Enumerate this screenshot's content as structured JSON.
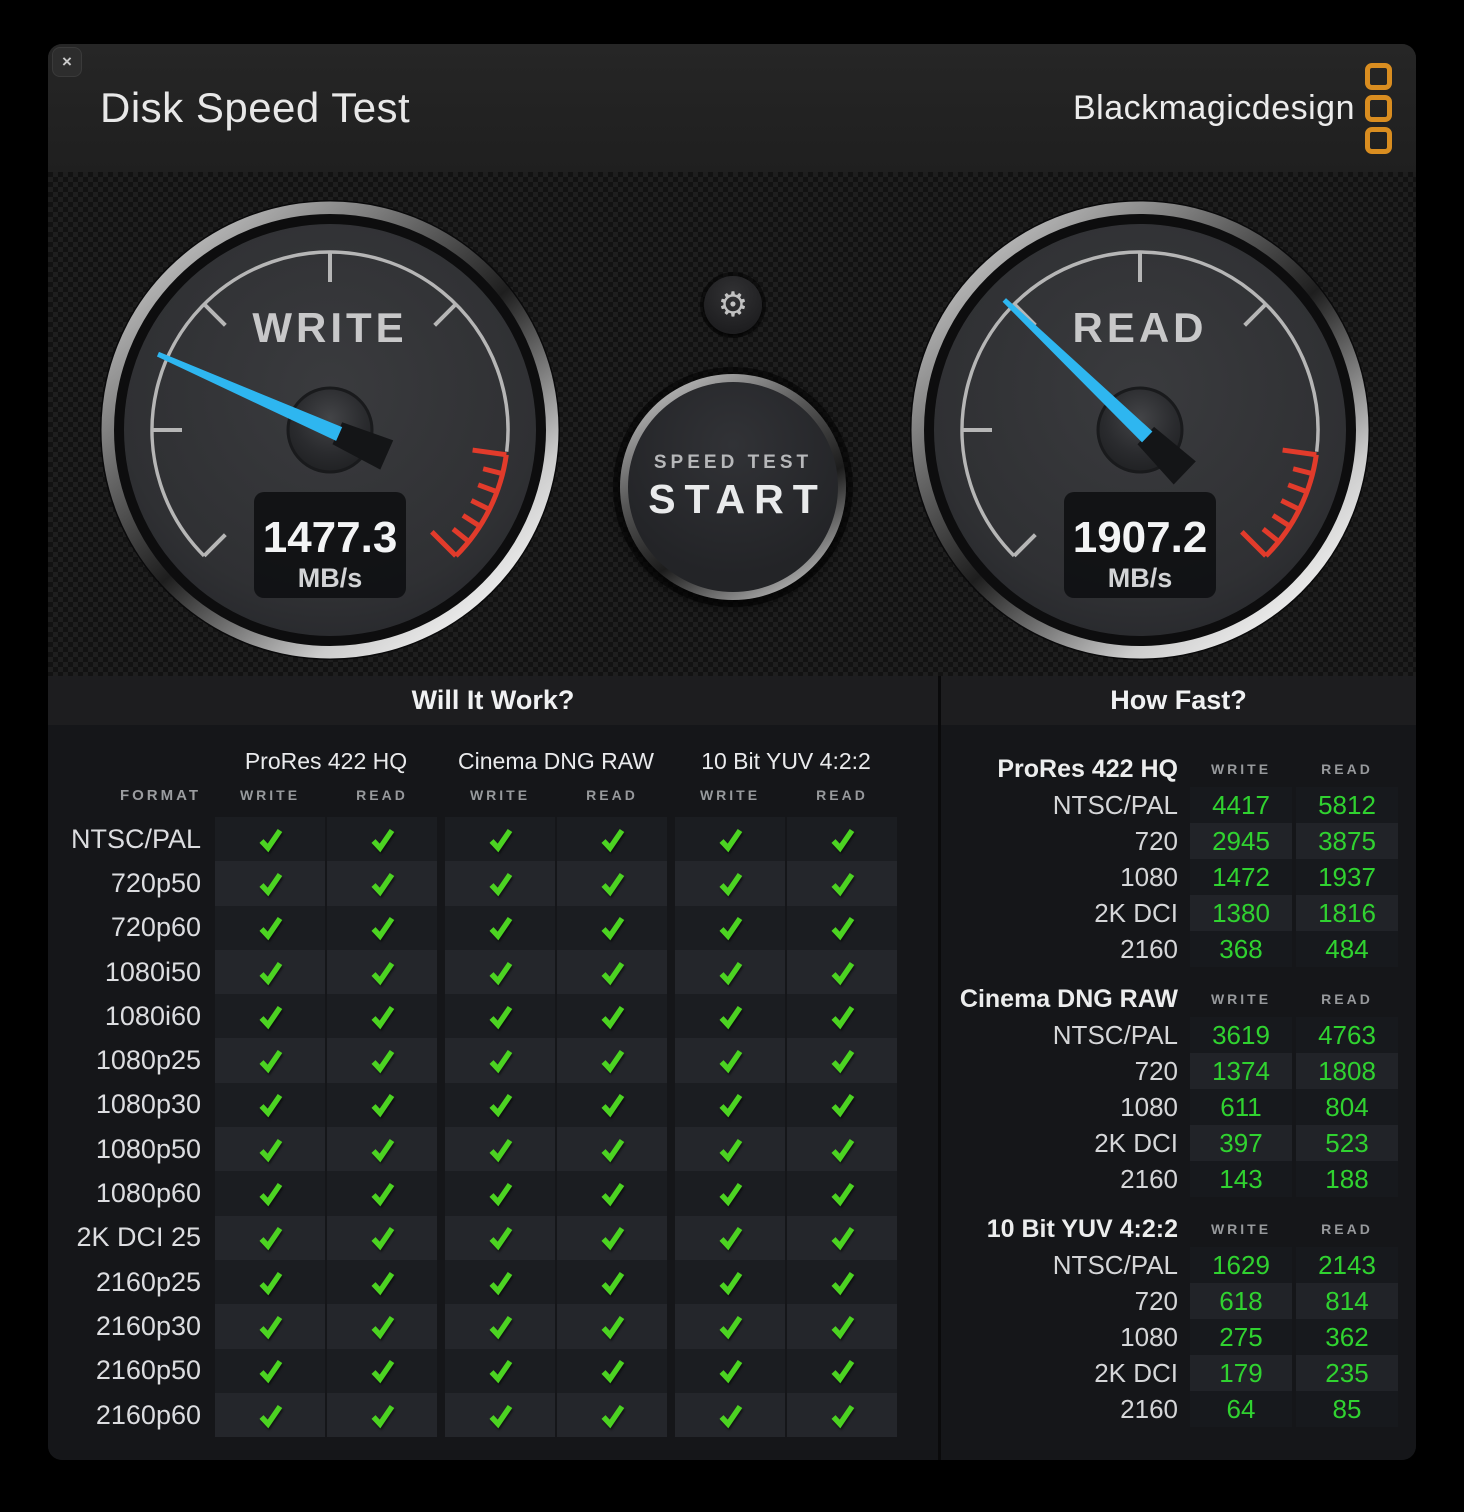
{
  "window": {
    "title": "Disk Speed Test",
    "close_glyph": "×"
  },
  "brand": {
    "logo_text": "Blackmagicdesign",
    "logo_color": "#d98d20",
    "square_count": 3
  },
  "controls": {
    "settings_icon": "gear",
    "settings_glyph": "⚙",
    "start_line1": "SPEED TEST",
    "start_line2": "START"
  },
  "gauges": {
    "start_angle": -135,
    "sweep": 270,
    "max": 5800,
    "needle_color": "#2eb6f0",
    "redzone_color": "#e23b2b",
    "write": {
      "label": "WRITE",
      "value": "1477.3",
      "value_num": 1477.3,
      "unit": "MB/s"
    },
    "read": {
      "label": "READ",
      "value": "1907.2",
      "value_num": 1907.2,
      "unit": "MB/s"
    }
  },
  "will_it_work": {
    "title": "Will It Work?",
    "format_header": "FORMAT",
    "groups": [
      "ProRes 422 HQ",
      "Cinema DNG RAW",
      "10 Bit YUV 4:2:2"
    ],
    "sub_headers": [
      "WRITE",
      "READ"
    ],
    "check_color": "#4cd322",
    "rows": [
      {
        "format": "NTSC/PAL",
        "checks": [
          true,
          true,
          true,
          true,
          true,
          true
        ]
      },
      {
        "format": "720p50",
        "checks": [
          true,
          true,
          true,
          true,
          true,
          true
        ]
      },
      {
        "format": "720p60",
        "checks": [
          true,
          true,
          true,
          true,
          true,
          true
        ]
      },
      {
        "format": "1080i50",
        "checks": [
          true,
          true,
          true,
          true,
          true,
          true
        ]
      },
      {
        "format": "1080i60",
        "checks": [
          true,
          true,
          true,
          true,
          true,
          true
        ]
      },
      {
        "format": "1080p25",
        "checks": [
          true,
          true,
          true,
          true,
          true,
          true
        ]
      },
      {
        "format": "1080p30",
        "checks": [
          true,
          true,
          true,
          true,
          true,
          true
        ]
      },
      {
        "format": "1080p50",
        "checks": [
          true,
          true,
          true,
          true,
          true,
          true
        ]
      },
      {
        "format": "1080p60",
        "checks": [
          true,
          true,
          true,
          true,
          true,
          true
        ]
      },
      {
        "format": "2K DCI 25",
        "checks": [
          true,
          true,
          true,
          true,
          true,
          true
        ]
      },
      {
        "format": "2160p25",
        "checks": [
          true,
          true,
          true,
          true,
          true,
          true
        ]
      },
      {
        "format": "2160p30",
        "checks": [
          true,
          true,
          true,
          true,
          true,
          true
        ]
      },
      {
        "format": "2160p50",
        "checks": [
          true,
          true,
          true,
          true,
          true,
          true
        ]
      },
      {
        "format": "2160p60",
        "checks": [
          true,
          true,
          true,
          true,
          true,
          true
        ]
      }
    ]
  },
  "how_fast": {
    "title": "How Fast?",
    "col_headers": [
      "WRITE",
      "READ"
    ],
    "value_color": "#30d230",
    "sections": [
      {
        "label": "ProRes 422 HQ",
        "rows": [
          {
            "format": "NTSC/PAL",
            "write": "4417",
            "read": "5812"
          },
          {
            "format": "720",
            "write": "2945",
            "read": "3875"
          },
          {
            "format": "1080",
            "write": "1472",
            "read": "1937"
          },
          {
            "format": "2K DCI",
            "write": "1380",
            "read": "1816"
          },
          {
            "format": "2160",
            "write": "368",
            "read": "484"
          }
        ]
      },
      {
        "label": "Cinema DNG RAW",
        "rows": [
          {
            "format": "NTSC/PAL",
            "write": "3619",
            "read": "4763"
          },
          {
            "format": "720",
            "write": "1374",
            "read": "1808"
          },
          {
            "format": "1080",
            "write": "611",
            "read": "804"
          },
          {
            "format": "2K DCI",
            "write": "397",
            "read": "523"
          },
          {
            "format": "2160",
            "write": "143",
            "read": "188"
          }
        ]
      },
      {
        "label": "10 Bit YUV 4:2:2",
        "rows": [
          {
            "format": "NTSC/PAL",
            "write": "1629",
            "read": "2143"
          },
          {
            "format": "720",
            "write": "618",
            "read": "814"
          },
          {
            "format": "1080",
            "write": "275",
            "read": "362"
          },
          {
            "format": "2K DCI",
            "write": "179",
            "read": "235"
          },
          {
            "format": "2160",
            "write": "64",
            "read": "85"
          }
        ]
      }
    ]
  }
}
